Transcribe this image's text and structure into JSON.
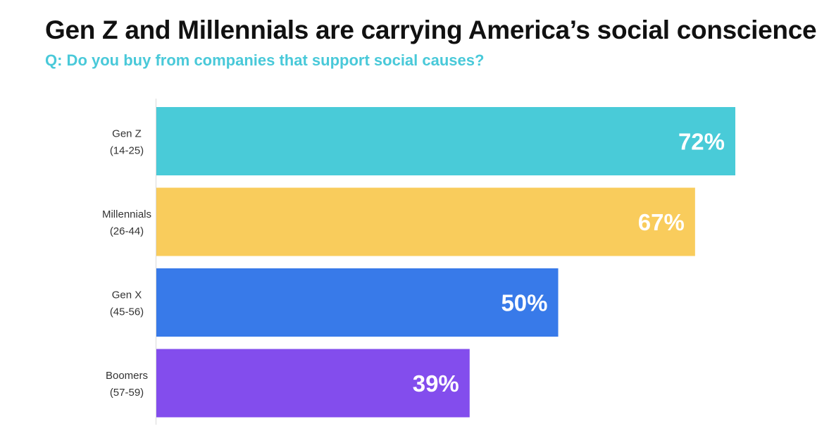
{
  "title": "Gen Z and Millennials are carrying America’s social conscience",
  "subtitle": "Q: Do you buy from companies that support social causes?",
  "chart_data": {
    "type": "bar",
    "orientation": "horizontal",
    "categories": [
      {
        "name": "Gen Z",
        "range": "(14-25)"
      },
      {
        "name": "Millennials",
        "range": "(26-44)"
      },
      {
        "name": "Gen X",
        "range": "(45-56)"
      },
      {
        "name": "Boomers",
        "range": "(57-59)"
      }
    ],
    "values": [
      72,
      67,
      50,
      39
    ],
    "value_labels": [
      "72%",
      "67%",
      "50%",
      "39%"
    ],
    "colors": [
      "#49cbd8",
      "#f9cc5c",
      "#387ae9",
      "#834ded"
    ],
    "label_color": "#ffffff",
    "unit": "%",
    "grid": false
  }
}
